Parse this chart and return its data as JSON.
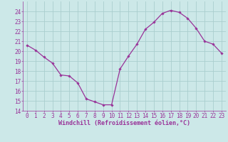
{
  "x": [
    0,
    1,
    2,
    3,
    4,
    5,
    6,
    7,
    8,
    9,
    10,
    11,
    12,
    13,
    14,
    15,
    16,
    17,
    18,
    19,
    20,
    21,
    22,
    23
  ],
  "y": [
    20.6,
    20.1,
    19.4,
    18.8,
    17.6,
    17.5,
    16.8,
    15.2,
    14.9,
    14.6,
    14.6,
    18.2,
    19.5,
    20.7,
    22.2,
    22.9,
    23.8,
    24.1,
    23.9,
    23.3,
    22.3,
    21.0,
    20.7,
    19.8
  ],
  "line_color": "#993399",
  "marker": "D",
  "marker_size": 1.8,
  "linewidth": 0.9,
  "bg_color": "#cce8e8",
  "grid_color": "#aacece",
  "xlabel": "Windchill (Refroidissement éolien,°C)",
  "xlabel_color": "#993399",
  "tick_color": "#993399",
  "ylim": [
    14,
    25
  ],
  "xlim": [
    -0.5,
    23.5
  ],
  "yticks": [
    14,
    15,
    16,
    17,
    18,
    19,
    20,
    21,
    22,
    23,
    24
  ],
  "xticks": [
    0,
    1,
    2,
    3,
    4,
    5,
    6,
    7,
    8,
    9,
    10,
    11,
    12,
    13,
    14,
    15,
    16,
    17,
    18,
    19,
    20,
    21,
    22,
    23
  ],
  "xlabel_fontsize": 6.0,
  "tick_fontsize": 5.5
}
